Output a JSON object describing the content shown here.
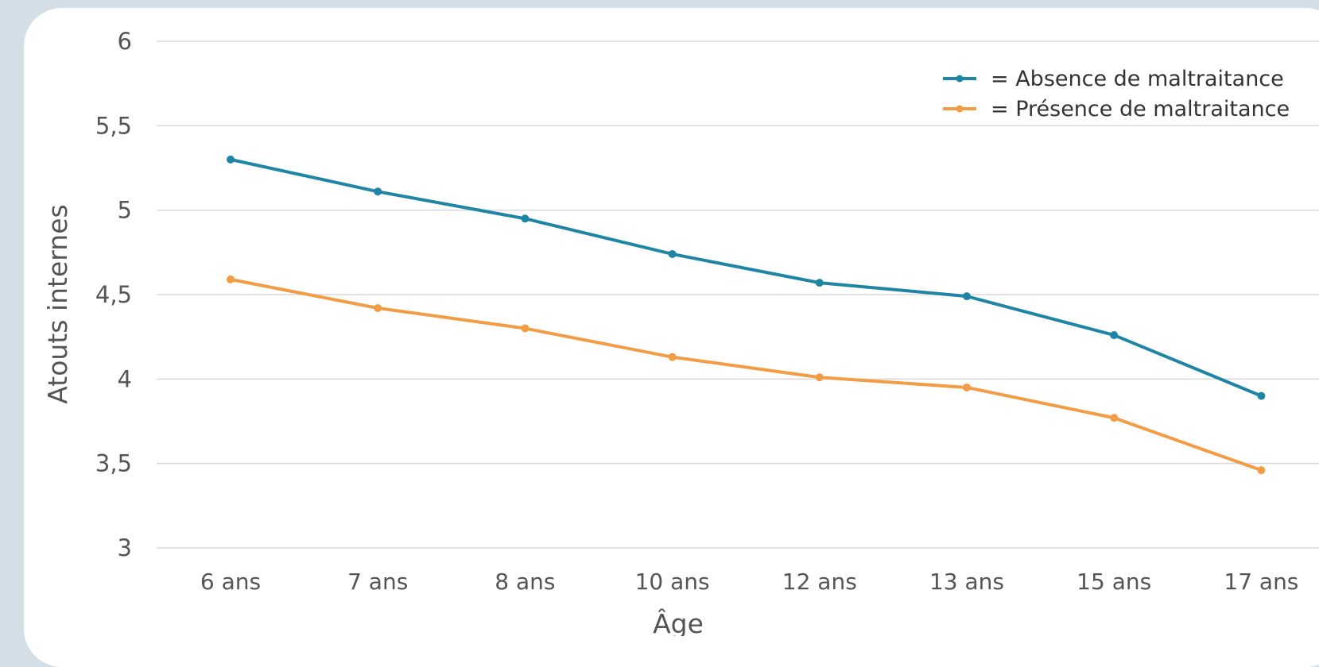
{
  "chart_data": {
    "type": "line",
    "categories": [
      "6 ans",
      "7 ans",
      "8 ans",
      "10 ans",
      "12 ans",
      "13 ans",
      "15 ans",
      "17 ans"
    ],
    "series": [
      {
        "name": "= Absence de maltraitance",
        "color": "#1f85a5",
        "values": [
          5.3,
          5.11,
          4.95,
          4.74,
          4.57,
          4.49,
          4.26,
          3.9
        ]
      },
      {
        "name": "= Présence de maltraitance",
        "color": "#f29c45",
        "values": [
          4.59,
          4.42,
          4.3,
          4.13,
          4.01,
          3.95,
          3.77,
          3.46
        ]
      }
    ],
    "xlabel": "Âge",
    "ylabel": "Atouts internes",
    "ylim": [
      3,
      6
    ],
    "yticks": [
      3,
      3.5,
      4,
      4.5,
      5,
      5.5,
      6
    ],
    "ytick_labels": [
      "3",
      "3,5",
      "4",
      "4,5",
      "5",
      "5,5",
      "6"
    ],
    "grid": "horizontal",
    "legend_position": "top-right"
  }
}
